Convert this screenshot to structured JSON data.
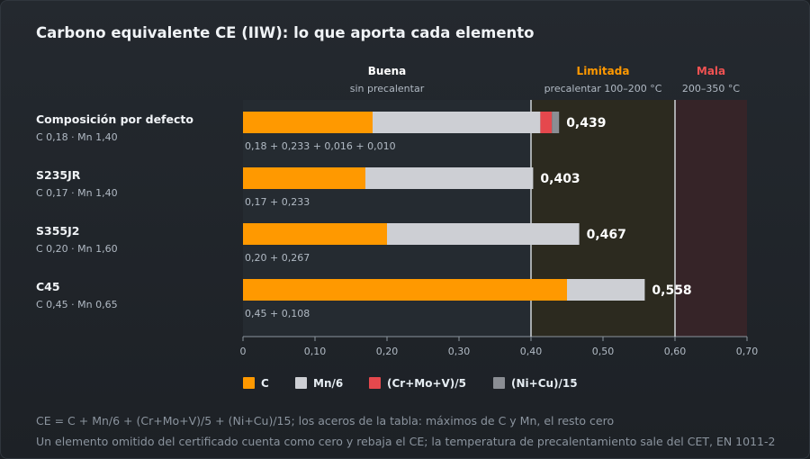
{
  "chart_data": {
    "type": "bar",
    "orientation": "horizontal",
    "stacked": true,
    "title": "Carbono equivalente CE (IIW): lo que aporta cada elemento",
    "xlim": [
      0,
      0.7
    ],
    "ticks": [
      0,
      0.1,
      0.2,
      0.3,
      0.4,
      0.5,
      0.6,
      0.7
    ],
    "tick_labels": [
      "0",
      "0,10",
      "0,20",
      "0,30",
      "0,40",
      "0,50",
      "0,60",
      "0,70"
    ],
    "zones": [
      {
        "name": "Buena",
        "sub": "sin precalentar",
        "from": 0,
        "to": 0.4,
        "color": "#ffffff",
        "fill": "#252b31"
      },
      {
        "name": "Limitada",
        "sub": "precalentar 100–200 °C",
        "from": 0.4,
        "to": 0.6,
        "color": "#ff9900",
        "fill": "#2c2a1f"
      },
      {
        "name": "Mala",
        "sub": "200–350 °C",
        "from": 0.6,
        "to": 0.7,
        "color": "#f05252",
        "fill": "#362428"
      }
    ],
    "series": [
      {
        "name": "C",
        "color": "#ff9900"
      },
      {
        "name": "Mn/6",
        "color": "#cdcfd4"
      },
      {
        "name": "(Cr+Mo+V)/5",
        "color": "#e5484d"
      },
      {
        "name": "(Ni+Cu)/15",
        "color": "#8b8e94"
      }
    ],
    "categories": [
      {
        "label": "Composición por defecto",
        "sub": "C 0,18 · Mn 1,40",
        "values": [
          0.18,
          0.233,
          0.016,
          0.01
        ],
        "sum_label": "0,18 + 0,233 + 0,016 + 0,010",
        "total_label": "0,439"
      },
      {
        "label": "S235JR",
        "sub": "C 0,17 · Mn 1,40",
        "values": [
          0.17,
          0.233,
          0,
          0
        ],
        "sum_label": "0,17 + 0,233",
        "total_label": "0,403"
      },
      {
        "label": "S355J2",
        "sub": "C 0,20 · Mn 1,60",
        "values": [
          0.2,
          0.267,
          0,
          0
        ],
        "sum_label": "0,20 + 0,267",
        "total_label": "0,467"
      },
      {
        "label": "C45",
        "sub": "C 0,45 · Mn 0,65",
        "values": [
          0.45,
          0.108,
          0,
          0
        ],
        "sum_label": "0,45 + 0,108",
        "total_label": "0,558"
      }
    ]
  },
  "notes": [
    "CE = C + Mn/6 + (Cr+Mo+V)/5 + (Ni+Cu)/15; los aceros de la tabla: máximos de C y Mn, el resto cero",
    "Un elemento omitido del certificado cuenta como cero y rebaja el CE; la temperatura de precalentamiento sale del CET, EN 1011-2"
  ]
}
